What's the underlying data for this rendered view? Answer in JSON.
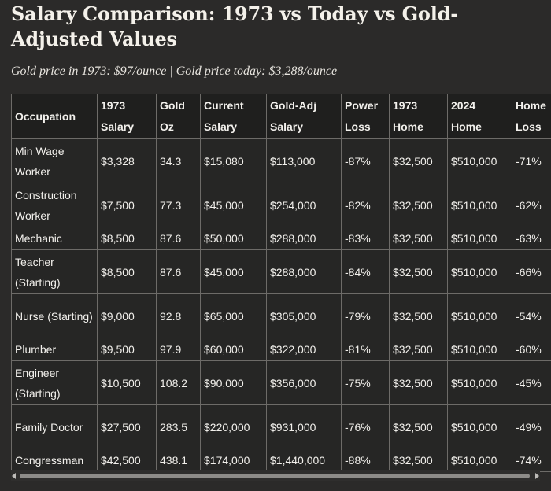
{
  "colors": {
    "background": "#2b2a29",
    "header_background": "#1f1f1e",
    "cell_background": "#262625",
    "border": "#6d6b68",
    "text": "#f2f0ec"
  },
  "page": {
    "title": "Salary Comparison: 1973 vs Today vs Gold-Adjusted Values",
    "subtitle": "Gold price in 1973: $97/ounce | Gold price today: $3,288/ounce"
  },
  "table": {
    "headers": [
      {
        "line1": "Occupation",
        "line2": ""
      },
      {
        "line1": "1973",
        "line2": "Salary"
      },
      {
        "line1": "Gold",
        "line2": "Oz"
      },
      {
        "line1": "Current",
        "line2": "Salary"
      },
      {
        "line1": "Gold-Adj",
        "line2": "Salary"
      },
      {
        "line1": "Power",
        "line2": "Loss"
      },
      {
        "line1": "1973",
        "line2": "Home"
      },
      {
        "line1": "2024",
        "line2": "Home"
      },
      {
        "line1": "Home",
        "line2": "Loss"
      }
    ],
    "rows": [
      {
        "occupation": "Min Wage Worker",
        "salary_1973": "$3,328",
        "gold_oz": "34.3",
        "current_salary": "$15,080",
        "gold_adj_salary": "$113,000",
        "power_loss": "-87%",
        "home_1973": "$32,500",
        "home_2024": "$510,000",
        "home_loss": "-71%"
      },
      {
        "occupation": "Construction Worker",
        "salary_1973": "$7,500",
        "gold_oz": "77.3",
        "current_salary": "$45,000",
        "gold_adj_salary": "$254,000",
        "power_loss": "-82%",
        "home_1973": "$32,500",
        "home_2024": "$510,000",
        "home_loss": "-62%"
      },
      {
        "occupation": "Mechanic",
        "salary_1973": "$8,500",
        "gold_oz": "87.6",
        "current_salary": "$50,000",
        "gold_adj_salary": "$288,000",
        "power_loss": "-83%",
        "home_1973": "$32,500",
        "home_2024": "$510,000",
        "home_loss": "-63%"
      },
      {
        "occupation": "Teacher (Starting)",
        "salary_1973": "$8,500",
        "gold_oz": "87.6",
        "current_salary": "$45,000",
        "gold_adj_salary": "$288,000",
        "power_loss": "-84%",
        "home_1973": "$32,500",
        "home_2024": "$510,000",
        "home_loss": "-66%"
      },
      {
        "occupation": "Nurse (Starting)",
        "salary_1973": "$9,000",
        "gold_oz": "92.8",
        "current_salary": "$65,000",
        "gold_adj_salary": "$305,000",
        "power_loss": "-79%",
        "home_1973": "$32,500",
        "home_2024": "$510,000",
        "home_loss": "-54%"
      },
      {
        "occupation": "Plumber",
        "salary_1973": "$9,500",
        "gold_oz": "97.9",
        "current_salary": "$60,000",
        "gold_adj_salary": "$322,000",
        "power_loss": "-81%",
        "home_1973": "$32,500",
        "home_2024": "$510,000",
        "home_loss": "-60%"
      },
      {
        "occupation": "Engineer (Starting)",
        "salary_1973": "$10,500",
        "gold_oz": "108.2",
        "current_salary": "$90,000",
        "gold_adj_salary": "$356,000",
        "power_loss": "-75%",
        "home_1973": "$32,500",
        "home_2024": "$510,000",
        "home_loss": "-45%"
      },
      {
        "occupation": "Family Doctor",
        "salary_1973": "$27,500",
        "gold_oz": "283.5",
        "current_salary": "$220,000",
        "gold_adj_salary": "$931,000",
        "power_loss": "-76%",
        "home_1973": "$32,500",
        "home_2024": "$510,000",
        "home_loss": "-49%"
      },
      {
        "occupation": "Congressman",
        "salary_1973": "$42,500",
        "gold_oz": "438.1",
        "current_salary": "$174,000",
        "gold_adj_salary": "$1,440,000",
        "power_loss": "-88%",
        "home_1973": "$32,500",
        "home_2024": "$510,000",
        "home_loss": "-74%"
      }
    ]
  },
  "scrollbar": {
    "left_icon": "chevron-left-icon",
    "right_icon": "chevron-right-icon"
  }
}
